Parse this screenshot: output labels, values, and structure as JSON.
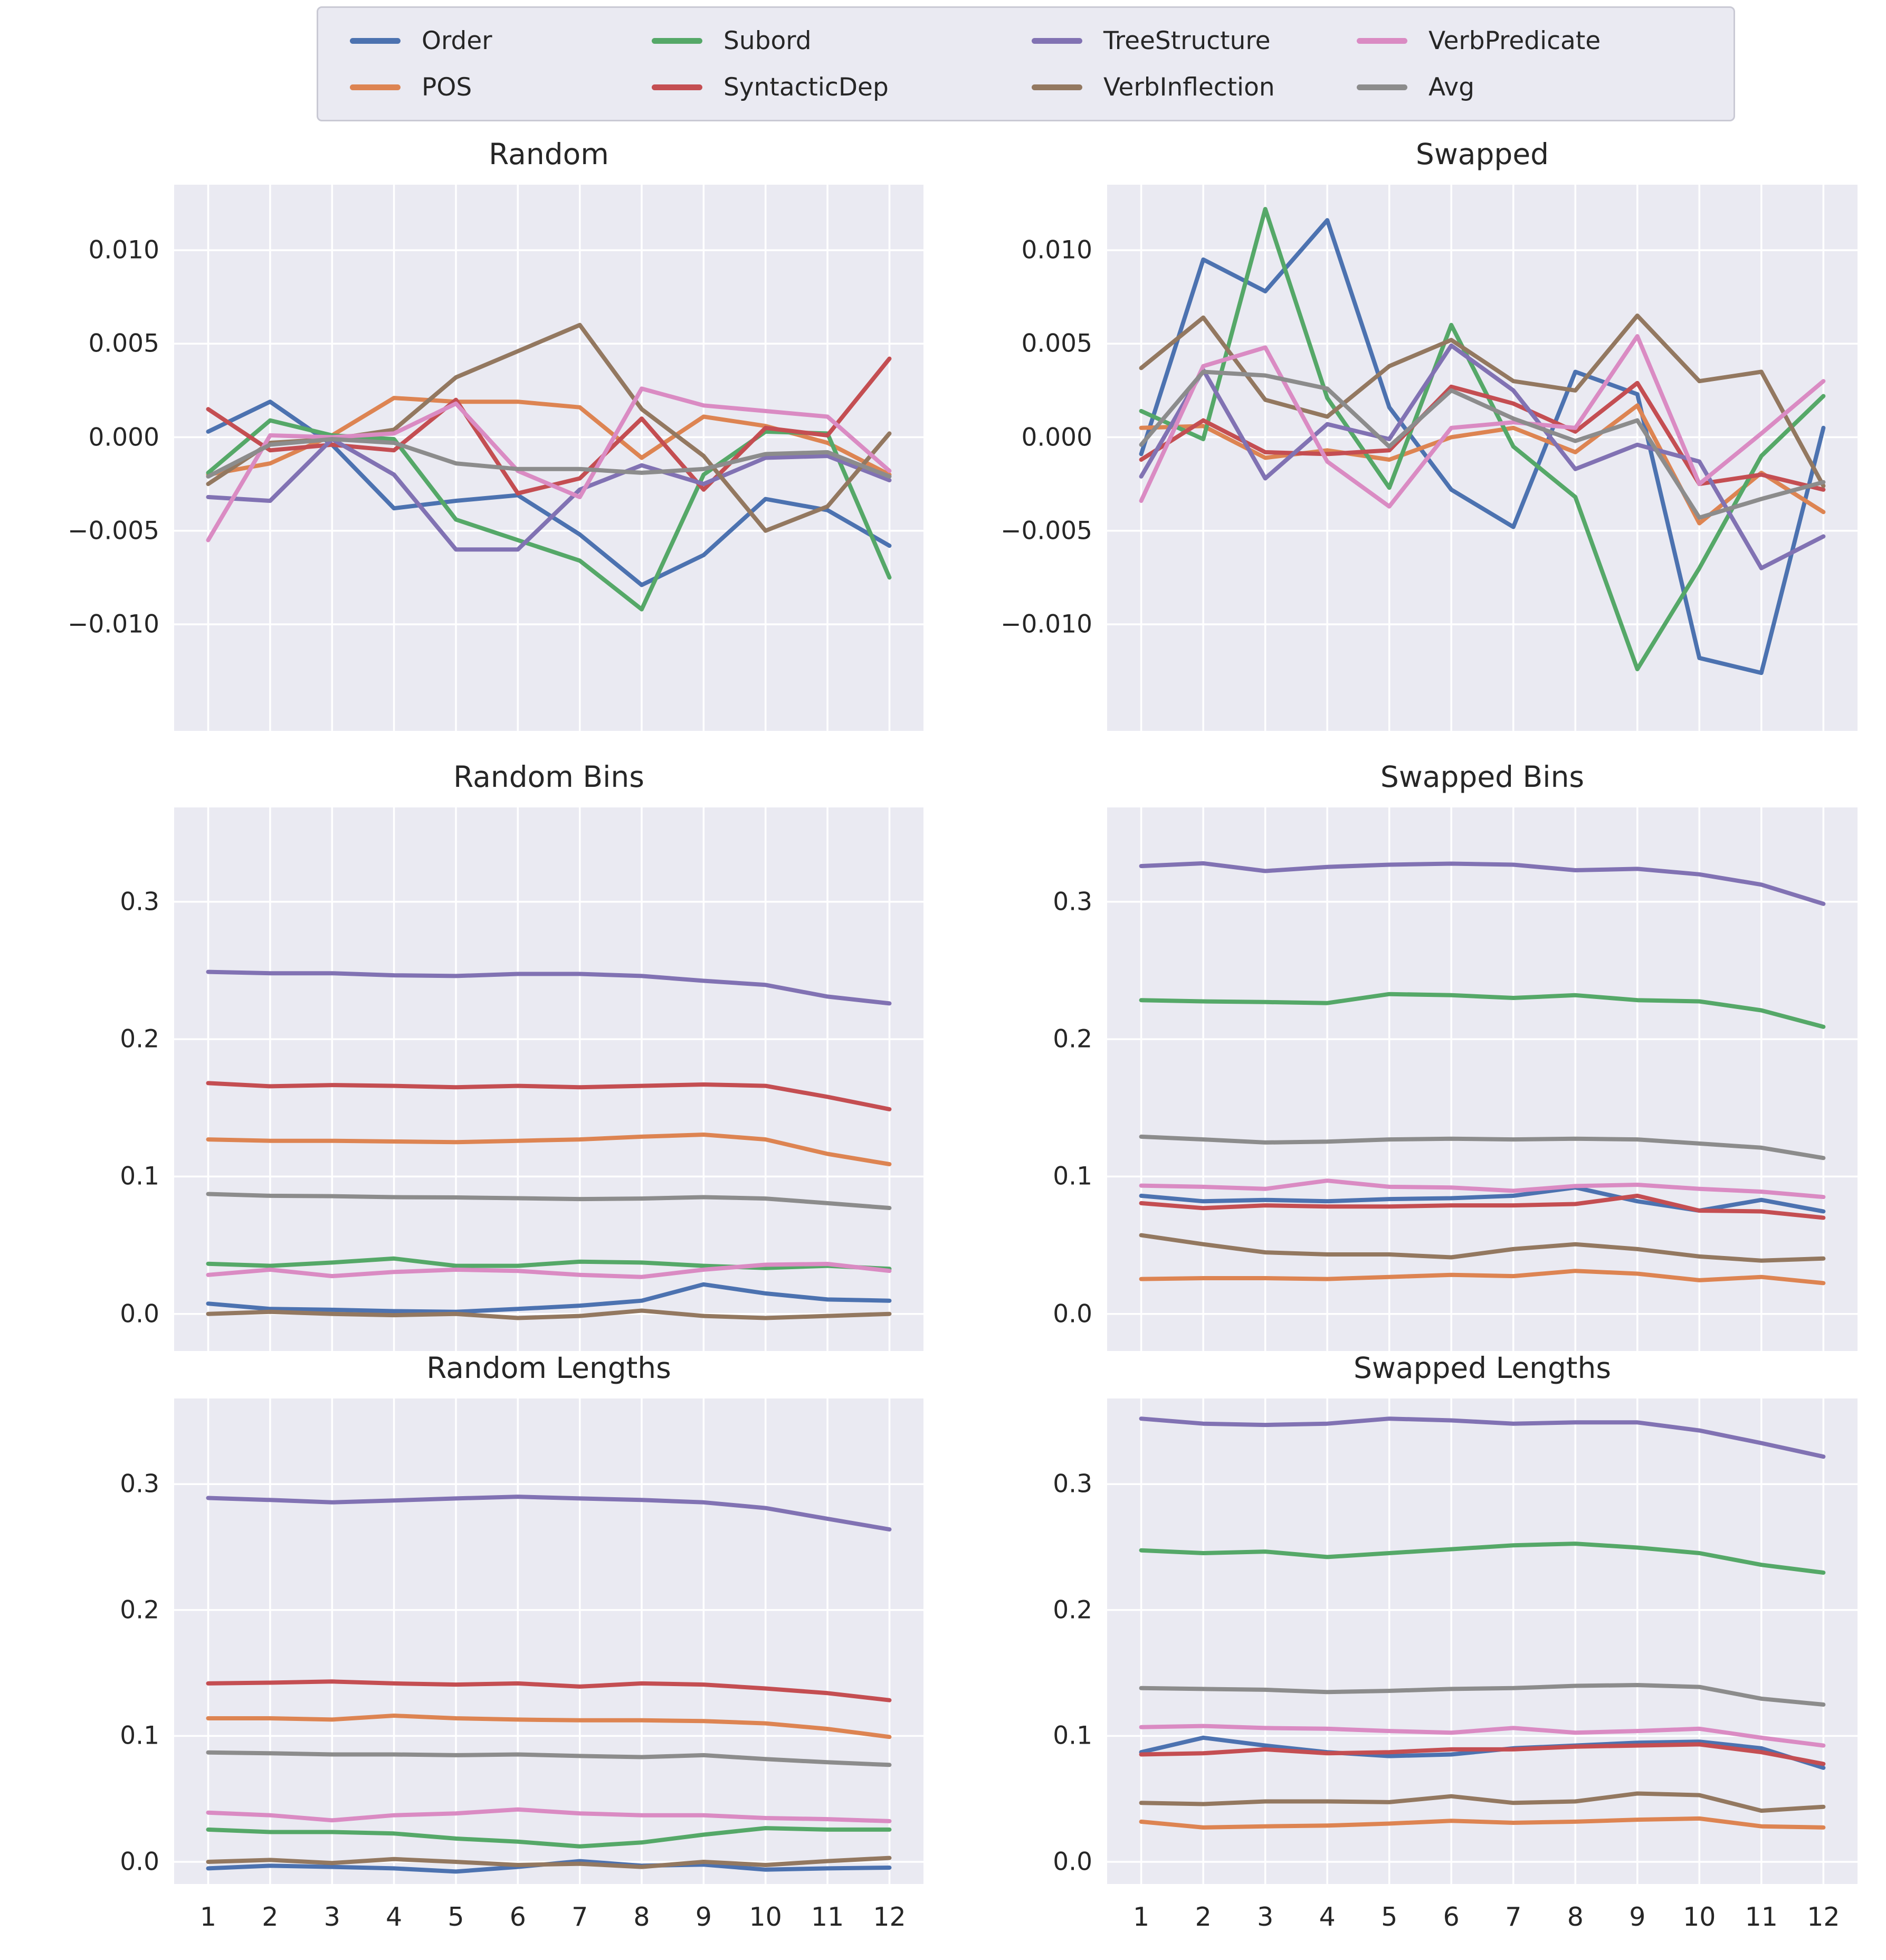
{
  "palette": {
    "Order": "#4c72b0",
    "POS": "#dd8452",
    "Subord": "#55a868",
    "SyntacticDep": "#c44e52",
    "TreeStructure": "#8172b3",
    "VerbInflection": "#937860",
    "VerbPredicate": "#da8bc3",
    "Avg": "#8c8c8c"
  },
  "style": {
    "plot_background": "#eaeaf2",
    "grid_color": "#ffffff",
    "text_color": "#262626",
    "legend_border": "#c9c9d4"
  },
  "legend": {
    "columns": [
      [
        "Order",
        "POS"
      ],
      [
        "Subord",
        "SyntacticDep"
      ],
      [
        "TreeStructure",
        "VerbInflection"
      ],
      [
        "VerbPredicate",
        "Avg"
      ]
    ]
  },
  "x_categories": [
    "1",
    "2",
    "3",
    "4",
    "5",
    "6",
    "7",
    "8",
    "9",
    "10",
    "11",
    "12"
  ],
  "chart_data": [
    {
      "type": "line",
      "title": "Random",
      "xlim": [
        0.45,
        12.55
      ],
      "ylim": [
        -0.0157,
        0.0135
      ],
      "grid": true,
      "show_xticklabels": false,
      "yticks": {
        "values": [
          0.01,
          0.005,
          0.0,
          -0.005,
          -0.01
        ],
        "labels": [
          "0.010",
          "0.005",
          "0.000",
          "−0.005",
          "−0.010"
        ]
      },
      "series": [
        {
          "name": "Order",
          "values": [
            0.0003,
            0.0019,
            -0.0004,
            -0.0038,
            -0.0034,
            -0.0031,
            -0.0052,
            -0.0079,
            -0.0063,
            -0.0033,
            -0.0039,
            -0.0058
          ]
        },
        {
          "name": "POS",
          "values": [
            -0.002,
            -0.0014,
            0.0001,
            0.0021,
            0.0019,
            0.0019,
            0.0016,
            -0.0011,
            0.0011,
            0.0006,
            -0.0003,
            -0.002
          ]
        },
        {
          "name": "Subord",
          "values": [
            -0.0019,
            0.0009,
            0.0001,
            -0.0001,
            -0.0044,
            -0.0055,
            -0.0066,
            -0.0092,
            -0.002,
            0.0003,
            0.0002,
            -0.0075
          ]
        },
        {
          "name": "SyntacticDep",
          "values": [
            0.0015,
            -0.0007,
            -0.0004,
            -0.0007,
            0.002,
            -0.003,
            -0.0022,
            0.001,
            -0.0028,
            0.0005,
            0.0001,
            0.0042
          ]
        },
        {
          "name": "TreeStructure",
          "values": [
            -0.0032,
            -0.0034,
            -0.0001,
            -0.002,
            -0.006,
            -0.006,
            -0.0028,
            -0.0015,
            -0.0025,
            -0.0011,
            -0.001,
            -0.0023
          ]
        },
        {
          "name": "VerbInflection",
          "values": [
            -0.0025,
            -0.0003,
            -0.0001,
            0.0004,
            0.0032,
            0.0046,
            0.006,
            0.0015,
            -0.001,
            -0.005,
            -0.0037,
            0.0002
          ]
        },
        {
          "name": "VerbPredicate",
          "values": [
            -0.0055,
            0.0001,
            0.0,
            0.0002,
            0.0018,
            -0.0018,
            -0.0032,
            0.0026,
            0.0017,
            0.0014,
            0.0011,
            -0.0018
          ]
        },
        {
          "name": "Avg",
          "values": [
            -0.0021,
            -0.0004,
            -0.0001,
            -0.0003,
            -0.0014,
            -0.0017,
            -0.0017,
            -0.0019,
            -0.0017,
            -0.0009,
            -0.0008,
            -0.0021
          ]
        }
      ]
    },
    {
      "type": "line",
      "title": "Swapped",
      "xlim": [
        0.45,
        12.55
      ],
      "ylim": [
        -0.0157,
        0.0135
      ],
      "grid": true,
      "show_xticklabels": false,
      "yticks": {
        "values": [
          0.01,
          0.005,
          0.0,
          -0.005,
          -0.01
        ],
        "labels": [
          "0.010",
          "0.005",
          "0.000",
          "−0.005",
          "−0.010"
        ]
      },
      "series": [
        {
          "name": "Order",
          "values": [
            -0.0009,
            0.0095,
            0.0078,
            0.0116,
            0.0016,
            -0.0028,
            -0.0048,
            0.0035,
            0.0023,
            -0.0118,
            -0.0126,
            0.0005
          ]
        },
        {
          "name": "POS",
          "values": [
            0.0005,
            0.0006,
            -0.0011,
            -0.0007,
            -0.0012,
            0.0,
            0.0005,
            -0.0008,
            0.0017,
            -0.0046,
            -0.0019,
            -0.004
          ]
        },
        {
          "name": "Subord",
          "values": [
            0.0014,
            -0.0001,
            0.0122,
            0.0021,
            -0.0027,
            0.006,
            -0.0005,
            -0.0032,
            -0.0124,
            -0.007,
            -0.001,
            0.0022
          ]
        },
        {
          "name": "SyntacticDep",
          "values": [
            -0.0012,
            0.0009,
            -0.0008,
            -0.0009,
            -0.0007,
            0.0027,
            0.0018,
            0.0003,
            0.0029,
            -0.0025,
            -0.002,
            -0.0028
          ]
        },
        {
          "name": "TreeStructure",
          "values": [
            -0.0021,
            0.0036,
            -0.0022,
            0.0007,
            -0.0001,
            0.0049,
            0.0025,
            -0.0017,
            -0.0004,
            -0.0013,
            -0.007,
            -0.0053
          ]
        },
        {
          "name": "VerbInflection",
          "values": [
            0.0037,
            0.0064,
            0.002,
            0.0011,
            0.0038,
            0.0052,
            0.003,
            0.0025,
            0.0065,
            0.003,
            0.0035,
            -0.0026
          ]
        },
        {
          "name": "VerbPredicate",
          "values": [
            -0.0034,
            0.0038,
            0.0048,
            -0.0013,
            -0.0037,
            0.0005,
            0.0008,
            0.0005,
            0.0054,
            -0.0025,
            0.0002,
            0.003
          ]
        },
        {
          "name": "Avg",
          "values": [
            -0.0004,
            0.0035,
            0.0033,
            0.0026,
            -0.0005,
            0.0025,
            0.001,
            -0.0002,
            0.0009,
            -0.0043,
            -0.0033,
            -0.0024
          ]
        }
      ]
    },
    {
      "type": "line",
      "title": "Random Bins",
      "xlim": [
        0.45,
        12.55
      ],
      "ylim": [
        -0.027,
        0.3687
      ],
      "grid": true,
      "show_xticklabels": false,
      "yticks": {
        "values": [
          0.3,
          0.2,
          0.1,
          0.0
        ],
        "labels": [
          "0.3",
          "0.2",
          "0.1",
          "0.0"
        ]
      },
      "series": [
        {
          "name": "Order",
          "values": [
            0.0075,
            0.0036,
            0.003,
            0.002,
            0.0015,
            0.0036,
            0.006,
            0.0096,
            0.0215,
            0.0149,
            0.0105,
            0.0096
          ]
        },
        {
          "name": "POS",
          "values": [
            0.127,
            0.126,
            0.126,
            0.1255,
            0.125,
            0.126,
            0.127,
            0.129,
            0.1305,
            0.127,
            0.1165,
            0.109
          ]
        },
        {
          "name": "Subord",
          "values": [
            0.0365,
            0.035,
            0.0374,
            0.0403,
            0.035,
            0.035,
            0.038,
            0.0374,
            0.035,
            0.0334,
            0.035,
            0.0328
          ]
        },
        {
          "name": "SyntacticDep",
          "values": [
            0.168,
            0.1657,
            0.1666,
            0.166,
            0.165,
            0.166,
            0.165,
            0.166,
            0.167,
            0.166,
            0.158,
            0.149
          ]
        },
        {
          "name": "TreeStructure",
          "values": [
            0.249,
            0.248,
            0.248,
            0.2465,
            0.246,
            0.2475,
            0.2475,
            0.246,
            0.2425,
            0.2395,
            0.231,
            0.226
          ]
        },
        {
          "name": "VerbInflection",
          "values": [
            0.0,
            0.0015,
            0.0,
            -0.0009,
            0.0,
            -0.003,
            -0.0015,
            0.0024,
            -0.0015,
            -0.003,
            -0.0015,
            0.0
          ]
        },
        {
          "name": "VerbPredicate",
          "values": [
            0.0284,
            0.0322,
            0.0275,
            0.0305,
            0.0322,
            0.0313,
            0.0284,
            0.0269,
            0.0322,
            0.0358,
            0.0364,
            0.0313
          ]
        },
        {
          "name": "Avg",
          "values": [
            0.0873,
            0.086,
            0.0857,
            0.085,
            0.0848,
            0.0842,
            0.0836,
            0.084,
            0.085,
            0.084,
            0.0806,
            0.0771
          ]
        }
      ]
    },
    {
      "type": "line",
      "title": "Swapped Bins",
      "xlim": [
        0.45,
        12.55
      ],
      "ylim": [
        -0.027,
        0.3687
      ],
      "grid": true,
      "show_xticklabels": false,
      "yticks": {
        "values": [
          0.3,
          0.2,
          0.1,
          0.0
        ],
        "labels": [
          "0.3",
          "0.2",
          "0.1",
          "0.0"
        ]
      },
      "series": [
        {
          "name": "Order",
          "values": [
            0.086,
            0.082,
            0.083,
            0.082,
            0.0836,
            0.0842,
            0.086,
            0.092,
            0.082,
            0.0752,
            0.083,
            0.0746
          ]
        },
        {
          "name": "POS",
          "values": [
            0.0254,
            0.026,
            0.026,
            0.0254,
            0.0269,
            0.0284,
            0.0275,
            0.0313,
            0.0293,
            0.0245,
            0.0269,
            0.0224
          ]
        },
        {
          "name": "Subord",
          "values": [
            0.2284,
            0.2275,
            0.227,
            0.2263,
            0.2328,
            0.232,
            0.23,
            0.232,
            0.2284,
            0.2275,
            0.221,
            0.209
          ]
        },
        {
          "name": "SyntacticDep",
          "values": [
            0.0806,
            0.077,
            0.079,
            0.0782,
            0.0782,
            0.079,
            0.079,
            0.08,
            0.086,
            0.0752,
            0.0746,
            0.07
          ]
        },
        {
          "name": "TreeStructure",
          "values": [
            0.326,
            0.328,
            0.3224,
            0.3254,
            0.327,
            0.3278,
            0.327,
            0.323,
            0.324,
            0.32,
            0.3125,
            0.2985
          ]
        },
        {
          "name": "VerbInflection",
          "values": [
            0.0573,
            0.0507,
            0.0448,
            0.0433,
            0.0433,
            0.0412,
            0.0472,
            0.0507,
            0.0472,
            0.0418,
            0.0388,
            0.0403
          ]
        },
        {
          "name": "VerbPredicate",
          "values": [
            0.0934,
            0.0925,
            0.091,
            0.097,
            0.0925,
            0.092,
            0.0896,
            0.0931,
            0.094,
            0.091,
            0.089,
            0.0851
          ]
        },
        {
          "name": "Avg",
          "values": [
            0.129,
            0.127,
            0.1248,
            0.1254,
            0.127,
            0.1275,
            0.127,
            0.1275,
            0.127,
            0.124,
            0.121,
            0.1135
          ]
        }
      ]
    },
    {
      "type": "line",
      "title": "Random Lengths",
      "xlim": [
        0.45,
        12.55
      ],
      "ylim": [
        -0.0176,
        0.368
      ],
      "grid": true,
      "show_xticklabels": true,
      "yticks": {
        "values": [
          0.3,
          0.2,
          0.1,
          0.0
        ],
        "labels": [
          "0.3",
          "0.2",
          "0.1",
          "0.0"
        ]
      },
      "series": [
        {
          "name": "Order",
          "values": [
            -0.0052,
            -0.0031,
            -0.004,
            -0.0052,
            -0.0077,
            -0.004,
            0.0006,
            -0.0031,
            -0.0022,
            -0.0062,
            -0.0052,
            -0.0046
          ]
        },
        {
          "name": "POS",
          "values": [
            0.114,
            0.114,
            0.113,
            0.1161,
            0.114,
            0.113,
            0.1124,
            0.1124,
            0.1118,
            0.11,
            0.1056,
            0.0992
          ]
        },
        {
          "name": "Subord",
          "values": [
            0.0256,
            0.0237,
            0.0237,
            0.0225,
            0.0185,
            0.016,
            0.0123,
            0.0154,
            0.0216,
            0.0268,
            0.0256,
            0.0256
          ]
        },
        {
          "name": "SyntacticDep",
          "values": [
            0.1417,
            0.1423,
            0.1432,
            0.1417,
            0.1408,
            0.1417,
            0.1392,
            0.1417,
            0.1408,
            0.1377,
            0.134,
            0.1284
          ]
        },
        {
          "name": "TreeStructure",
          "values": [
            0.289,
            0.2874,
            0.2855,
            0.287,
            0.2886,
            0.29,
            0.2886,
            0.2874,
            0.2855,
            0.281,
            0.2725,
            0.264
          ]
        },
        {
          "name": "VerbInflection",
          "values": [
            0.0,
            0.0015,
            -0.0009,
            0.0022,
            0.0,
            -0.0025,
            -0.0015,
            -0.004,
            0.0,
            -0.0025,
            0.0006,
            0.0031
          ]
        },
        {
          "name": "VerbPredicate",
          "values": [
            0.0391,
            0.037,
            0.033,
            0.037,
            0.0385,
            0.0416,
            0.0385,
            0.037,
            0.037,
            0.0348,
            0.0339,
            0.0323
          ]
        },
        {
          "name": "Avg",
          "values": [
            0.0869,
            0.0862,
            0.0853,
            0.0853,
            0.0847,
            0.0853,
            0.0841,
            0.0832,
            0.0847,
            0.0816,
            0.0791,
            0.077
          ]
        }
      ]
    },
    {
      "type": "line",
      "title": "Swapped Lengths",
      "xlim": [
        0.45,
        12.55
      ],
      "ylim": [
        -0.0176,
        0.368
      ],
      "grid": true,
      "show_xticklabels": true,
      "yticks": {
        "values": [
          0.3,
          0.2,
          0.1,
          0.0
        ],
        "labels": [
          "0.3",
          "0.2",
          "0.1",
          "0.0"
        ]
      },
      "series": [
        {
          "name": "Order",
          "values": [
            0.0871,
            0.0986,
            0.0924,
            0.0871,
            0.084,
            0.0853,
            0.0902,
            0.0924,
            0.0946,
            0.0955,
            0.0902,
            0.0747
          ]
        },
        {
          "name": "POS",
          "values": [
            0.0319,
            0.0273,
            0.0282,
            0.0288,
            0.0304,
            0.0326,
            0.031,
            0.0319,
            0.0335,
            0.0344,
            0.0282,
            0.0273
          ]
        },
        {
          "name": "Subord",
          "values": [
            0.2474,
            0.2452,
            0.2464,
            0.2421,
            0.2452,
            0.2483,
            0.2514,
            0.2527,
            0.2496,
            0.2452,
            0.2359,
            0.2297
          ]
        },
        {
          "name": "SyntacticDep",
          "values": [
            0.0853,
            0.0862,
            0.0893,
            0.0862,
            0.0871,
            0.0893,
            0.0893,
            0.0915,
            0.0924,
            0.0933,
            0.0871,
            0.0778
          ]
        },
        {
          "name": "TreeStructure",
          "values": [
            0.352,
            0.348,
            0.347,
            0.348,
            0.352,
            0.3506,
            0.348,
            0.349,
            0.349,
            0.3426,
            0.3326,
            0.3218
          ]
        },
        {
          "name": "VerbInflection",
          "values": [
            0.0468,
            0.0459,
            0.048,
            0.048,
            0.0474,
            0.0521,
            0.0468,
            0.048,
            0.0543,
            0.053,
            0.0406,
            0.0437
          ]
        },
        {
          "name": "VerbPredicate",
          "values": [
            0.107,
            0.1079,
            0.1063,
            0.1057,
            0.1039,
            0.1026,
            0.1063,
            0.1026,
            0.1039,
            0.1057,
            0.0986,
            0.0924
          ]
        },
        {
          "name": "Avg",
          "values": [
            0.138,
            0.1373,
            0.1367,
            0.1349,
            0.1358,
            0.1373,
            0.138,
            0.1398,
            0.1404,
            0.1389,
            0.1296,
            0.1249
          ]
        }
      ]
    }
  ]
}
